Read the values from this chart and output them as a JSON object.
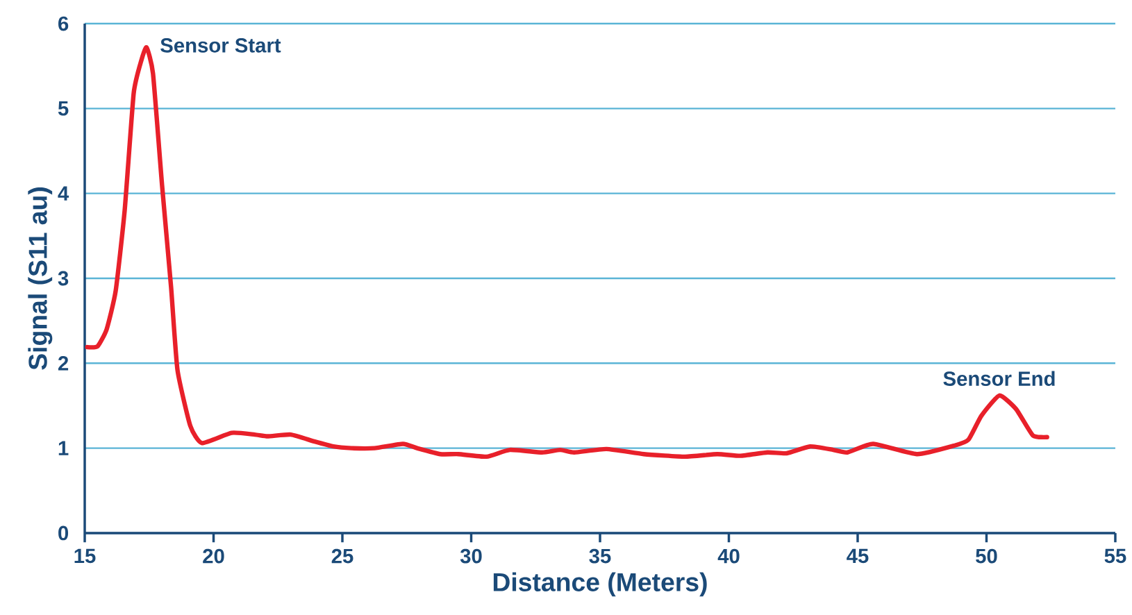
{
  "chart_data": {
    "type": "line",
    "xlabel": "Distance (Meters)",
    "ylabel": "Signal (S11 au)",
    "xlim": [
      15,
      55
    ],
    "xticks": [
      15,
      20,
      25,
      30,
      35,
      40,
      45,
      50,
      55
    ],
    "ylim": [
      0,
      6
    ],
    "yticks": [
      0,
      1,
      2,
      3,
      4,
      5,
      6
    ],
    "grid": "y",
    "marker": "none",
    "line_style": "solid",
    "series": [
      {
        "color": "#e8202a",
        "x": [
          15.1,
          15.5,
          15.85,
          16.2,
          16.55,
          16.9,
          17.2,
          17.4,
          17.65,
          18.0,
          18.35,
          18.6,
          19.1,
          19.55,
          20.7,
          21.6,
          22.1,
          23.0,
          23.9,
          24.65,
          25.35,
          26.25,
          27.35,
          27.9,
          28.8,
          29.5,
          30.6,
          31.5,
          32.75,
          33.45,
          34.0,
          35.25,
          36.7,
          38.3,
          39.55,
          40.45,
          41.5,
          42.25,
          43.15,
          44.05,
          44.6,
          45.6,
          47.3,
          48.75,
          49.3,
          49.8,
          50.5,
          51.15,
          51.8,
          52.35
        ],
        "values": [
          2.19,
          2.2,
          2.4,
          2.85,
          3.8,
          5.18,
          5.57,
          5.72,
          5.41,
          4.1,
          2.9,
          1.92,
          1.26,
          1.06,
          1.18,
          1.16,
          1.14,
          1.16,
          1.08,
          1.02,
          1.0,
          1.0,
          1.05,
          1.0,
          0.93,
          0.93,
          0.9,
          0.98,
          0.95,
          0.98,
          0.95,
          0.99,
          0.93,
          0.9,
          0.93,
          0.91,
          0.95,
          0.94,
          1.02,
          0.98,
          0.95,
          1.05,
          0.93,
          1.03,
          1.1,
          1.38,
          1.62,
          1.46,
          1.15,
          1.13
        ]
      }
    ],
    "annotations": [
      {
        "text": "Sensor Start",
        "x": 17.4,
        "y": 5.72
      },
      {
        "text": "Sensor End",
        "x": 50.5,
        "y": 1.62
      }
    ]
  }
}
